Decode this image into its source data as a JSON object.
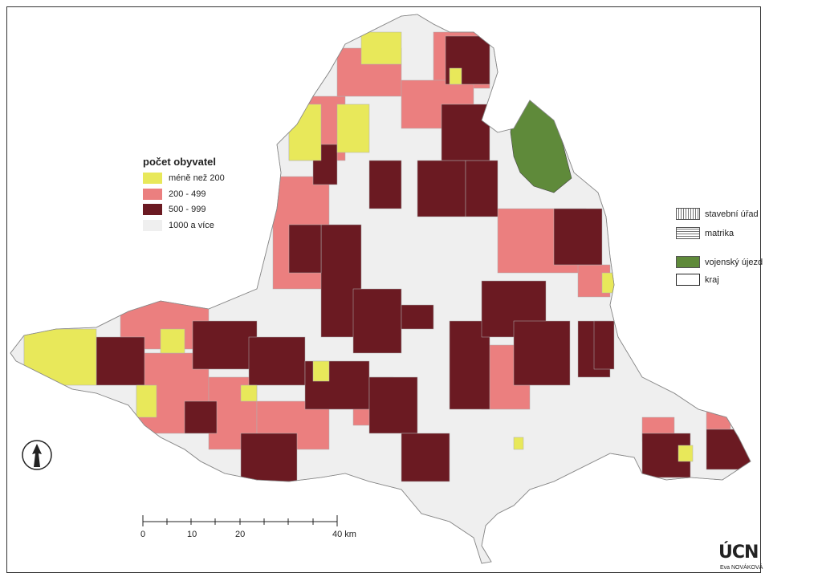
{
  "legend": {
    "title": "počet obyvatel",
    "items": [
      {
        "label": "méně než 200",
        "color": "#e8e85a"
      },
      {
        "label": "200 - 499",
        "color": "#eb7f7f"
      },
      {
        "label": "500 - 999",
        "color": "#6b1a22"
      },
      {
        "label": "1000 a více",
        "color": "#efefef"
      }
    ]
  },
  "right_legend": {
    "items": [
      {
        "label": "stavební úřad",
        "pattern": "vertical-hatch"
      },
      {
        "label": "matrika",
        "pattern": "horizontal-hatch"
      },
      {
        "label": "vojenský újezd",
        "color": "#5f8a3a"
      },
      {
        "label": "kraj",
        "pattern": "outline"
      }
    ]
  },
  "scale_bar": {
    "ticks": [
      "0",
      "10",
      "20",
      "40 km"
    ]
  },
  "credits": {
    "logo": "ÚCN",
    "author": "Eva NOVÁKOVÁ"
  },
  "map": {
    "north_arrow": "north-arrow-icon",
    "region_fill": "#efefef",
    "military_area_color": "#5f8a3a"
  }
}
